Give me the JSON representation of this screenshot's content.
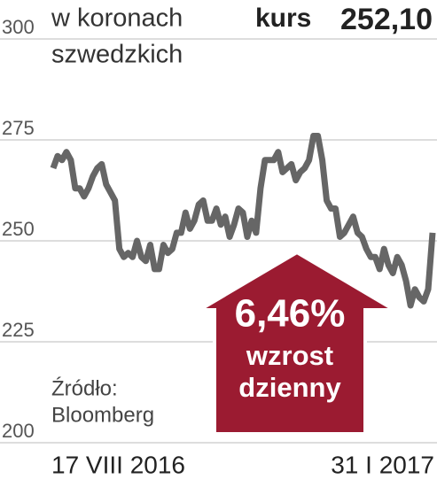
{
  "chart_data": {
    "type": "line",
    "unit_label": [
      "w koronach",
      "szwedzkich"
    ],
    "price_label": "kurs",
    "price": "252,10",
    "badge": [
      "6,46%",
      "wzrost",
      "dzienny"
    ],
    "source": [
      "Źródło:",
      "Bloomberg"
    ],
    "color": "#666666",
    "categories": [
      "17 VIII 2016",
      null,
      null,
      null,
      null,
      null,
      null,
      null,
      null,
      null,
      null,
      null,
      null,
      null,
      null,
      null,
      null,
      null,
      null,
      null,
      null,
      null,
      null,
      null,
      null,
      null,
      null,
      null,
      null,
      null,
      null,
      null,
      null,
      null,
      null,
      null,
      null,
      null,
      null,
      null,
      null,
      null,
      null,
      null,
      null,
      null,
      null,
      null,
      null,
      null,
      null,
      null,
      null,
      null,
      null,
      null,
      null,
      null,
      null,
      null,
      null,
      null,
      null,
      null,
      null,
      null,
      null,
      null,
      null,
      null,
      null,
      null,
      null,
      null,
      null,
      null,
      null,
      null,
      null,
      null,
      null,
      null,
      null,
      null,
      null,
      null,
      "31 I 2017"
    ],
    "values": [
      268,
      271,
      270,
      272,
      270,
      263,
      263,
      261,
      263,
      266,
      268,
      269,
      264,
      262,
      260,
      248,
      246,
      247,
      246,
      250,
      246,
      245,
      249,
      243,
      243,
      249,
      247,
      248,
      252,
      252,
      257,
      253,
      255,
      259,
      260,
      255,
      255,
      258,
      254,
      256,
      251,
      254,
      258,
      257,
      251,
      255,
      252,
      263,
      270,
      270,
      270,
      272,
      267,
      268,
      269,
      265,
      267,
      268,
      270,
      276,
      276,
      270,
      260,
      258,
      258,
      251,
      252,
      254,
      256,
      252,
      251,
      248,
      246,
      246,
      243,
      248,
      244,
      242,
      246,
      244,
      240,
      234,
      238,
      236,
      235,
      238,
      252
    ],
    "ylim": [
      200,
      300
    ],
    "yticks": [
      200,
      225,
      250,
      275,
      300
    ],
    "grid": true
  }
}
